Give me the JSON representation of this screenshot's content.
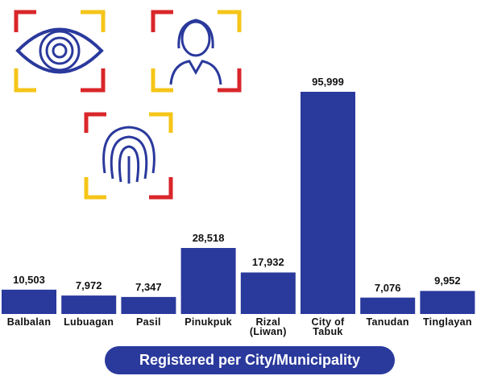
{
  "chart_data": {
    "type": "bar",
    "title": "Registered per City/Municipality",
    "categories": [
      "Balbalan",
      "Lubuagan",
      "Pasil",
      "Pinukpuk",
      "Rizal (Liwan)",
      "City of Tabuk",
      "Tanudan",
      "Tinglayan"
    ],
    "values": [
      10503,
      7972,
      7347,
      28518,
      17932,
      95999,
      7076,
      9952
    ],
    "value_labels": [
      "10,503",
      "7,972",
      "7,347",
      "28,518",
      "17,932",
      "95,999",
      "7,076",
      "9,952"
    ],
    "color": "#2a399c"
  }
}
